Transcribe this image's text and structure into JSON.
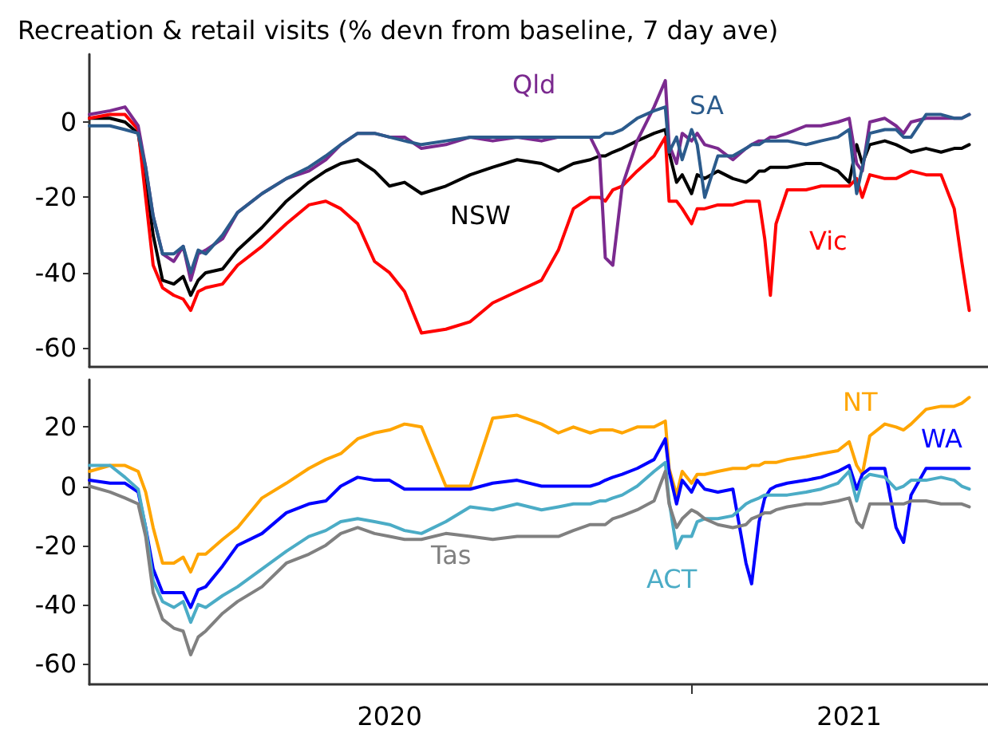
{
  "chart_data": [
    {
      "type": "line",
      "title": "Recreation & retail visits (% devn from baseline, 7 day ave)",
      "marker": "none",
      "tick_labels": "y",
      "xlim": [
        "2020-02-15",
        "2021-06-08"
      ],
      "ylim": [
        -65,
        18
      ],
      "yticks": [
        0,
        -20,
        -40,
        -60
      ],
      "x": [
        "2020-02-15",
        "2020-02-26",
        "2020-03-05",
        "2020-03-12",
        "2020-03-16",
        "2020-03-20",
        "2020-03-25",
        "2020-03-31",
        "2020-04-05",
        "2020-04-09",
        "2020-04-13",
        "2020-04-17",
        "2020-04-26",
        "2020-05-04",
        "2020-05-17",
        "2020-05-30",
        "2020-06-11",
        "2020-06-20",
        "2020-06-28",
        "2020-07-07",
        "2020-07-16",
        "2020-07-24",
        "2020-08-01",
        "2020-08-10",
        "2020-08-23",
        "2020-09-05",
        "2020-09-17",
        "2020-09-30",
        "2020-10-13",
        "2020-10-22",
        "2020-10-30",
        "2020-11-08",
        "2020-11-13",
        "2020-11-16",
        "2020-11-20",
        "2020-11-25",
        "2020-12-03",
        "2020-12-12",
        "2020-12-18",
        "2020-12-20",
        "2020-12-24",
        "2020-12-27",
        "2021-01-01",
        "2021-01-04",
        "2021-01-08",
        "2021-01-15",
        "2021-01-23",
        "2021-01-30",
        "2021-02-02",
        "2021-02-06",
        "2021-02-09",
        "2021-02-12",
        "2021-02-15",
        "2021-02-21",
        "2021-03-03",
        "2021-03-11",
        "2021-03-20",
        "2021-03-26",
        "2021-03-30",
        "2021-04-02",
        "2021-04-06",
        "2021-04-14",
        "2021-04-20",
        "2021-04-24",
        "2021-04-28",
        "2021-05-06",
        "2021-05-14",
        "2021-05-21",
        "2021-05-25",
        "2021-05-29"
      ],
      "series": [
        {
          "name": "NSW",
          "color": "#000000",
          "values": [
            1,
            1,
            0,
            -3,
            -15,
            -30,
            -42,
            -43,
            -41,
            -46,
            -42,
            -40,
            -39,
            -34,
            -28,
            -21,
            -16,
            -13,
            -11,
            -10,
            -13,
            -17,
            -16,
            -19,
            -17,
            -14,
            -12,
            -10,
            -11,
            -13,
            -11,
            -10,
            -9,
            -9,
            -8,
            -7,
            -5,
            -3,
            -2,
            -8,
            -16,
            -14,
            -19,
            -14,
            -15,
            -13,
            -15,
            -16,
            -15,
            -13,
            -13,
            -12,
            -12,
            -12,
            -11,
            -11,
            -13,
            -16,
            -6,
            -11,
            -6,
            -5,
            -6,
            -7,
            -8,
            -7,
            -8,
            -7,
            -7,
            -6
          ]
        },
        {
          "name": "Vic",
          "color": "#ff0000",
          "values": [
            1,
            2,
            2,
            -2,
            -20,
            -38,
            -44,
            -46,
            -47,
            -50,
            -45,
            -44,
            -43,
            -38,
            -33,
            -27,
            -22,
            -21,
            -23,
            -27,
            -37,
            -40,
            -45,
            -56,
            -55,
            -53,
            -48,
            -45,
            -42,
            -34,
            -23,
            -20,
            -20,
            -21,
            -18,
            -17,
            -13,
            -9,
            -4,
            -21,
            -21,
            -23,
            -27,
            -23,
            -23,
            -22,
            -22,
            -21,
            -21,
            -21,
            -31,
            -46,
            -27,
            -18,
            -18,
            -17,
            -17,
            -17,
            -15,
            -20,
            -14,
            -15,
            -15,
            -14,
            -13,
            -14,
            -14,
            -23,
            -37,
            -50
          ]
        },
        {
          "name": "Qld",
          "color": "#7b2a8f",
          "values": [
            2,
            3,
            4,
            -1,
            -12,
            -25,
            -35,
            -37,
            -33,
            -42,
            -35,
            -34,
            -31,
            -24,
            -19,
            -15,
            -13,
            -10,
            -6,
            -3,
            -3,
            -4,
            -4,
            -7,
            -6,
            -4,
            -5,
            -4,
            -5,
            -4,
            -4,
            -4,
            -9,
            -36,
            -38,
            -17,
            -5,
            4,
            11,
            -6,
            -11,
            -3,
            -5,
            -3,
            -6,
            -7,
            -10,
            -7,
            -6,
            -5,
            -5,
            -4,
            -4,
            -3,
            -1,
            -1,
            0,
            1,
            -11,
            -13,
            0,
            1,
            -1,
            -3,
            0,
            1,
            1,
            1,
            1,
            2
          ]
        },
        {
          "name": "SA",
          "color": "#2b5b8c",
          "values": [
            -1,
            -1,
            -2,
            -3,
            -12,
            -25,
            -35,
            -35,
            -33,
            -40,
            -34,
            -35,
            -30,
            -24,
            -19,
            -15,
            -12,
            -9,
            -6,
            -3,
            -3,
            -4,
            -5,
            -6,
            -5,
            -4,
            -4,
            -4,
            -4,
            -4,
            -4,
            -4,
            -4,
            -3,
            -3,
            -2,
            1,
            3,
            4,
            -8,
            -4,
            -10,
            -2,
            -6,
            -20,
            -9,
            -9,
            -7,
            -6,
            -6,
            -5,
            -5,
            -5,
            -5,
            -6,
            -5,
            -4,
            -2,
            -19,
            -12,
            -3,
            -2,
            -2,
            -4,
            -4,
            2,
            2,
            1,
            1,
            2
          ]
        }
      ]
    },
    {
      "type": "line",
      "marker": "none",
      "xlim": [
        "2020-02-15",
        "2021-06-08"
      ],
      "ylim": [
        -67,
        36
      ],
      "yticks": [
        20,
        0,
        -20,
        -40,
        -60
      ],
      "xticks": [
        {
          "value": "2020-07-24",
          "label": "2020"
        },
        {
          "value": "2021-01-01",
          "label": null
        },
        {
          "value": "2021-03-26",
          "label": "2021"
        }
      ],
      "x": [
        "2020-02-15",
        "2020-02-26",
        "2020-03-05",
        "2020-03-12",
        "2020-03-16",
        "2020-03-20",
        "2020-03-25",
        "2020-03-31",
        "2020-04-05",
        "2020-04-09",
        "2020-04-13",
        "2020-04-17",
        "2020-04-26",
        "2020-05-04",
        "2020-05-17",
        "2020-05-30",
        "2020-06-11",
        "2020-06-20",
        "2020-06-28",
        "2020-07-07",
        "2020-07-16",
        "2020-07-24",
        "2020-08-01",
        "2020-08-10",
        "2020-08-23",
        "2020-09-05",
        "2020-09-17",
        "2020-09-30",
        "2020-10-13",
        "2020-10-22",
        "2020-10-30",
        "2020-11-08",
        "2020-11-13",
        "2020-11-16",
        "2020-11-20",
        "2020-11-25",
        "2020-12-03",
        "2020-12-12",
        "2020-12-18",
        "2020-12-20",
        "2020-12-24",
        "2020-12-27",
        "2021-01-01",
        "2021-01-04",
        "2021-01-08",
        "2021-01-15",
        "2021-01-23",
        "2021-01-30",
        "2021-02-02",
        "2021-02-06",
        "2021-02-09",
        "2021-02-12",
        "2021-02-15",
        "2021-02-21",
        "2021-03-03",
        "2021-03-11",
        "2021-03-20",
        "2021-03-26",
        "2021-03-30",
        "2021-04-02",
        "2021-04-06",
        "2021-04-14",
        "2021-04-20",
        "2021-04-24",
        "2021-04-28",
        "2021-05-06",
        "2021-05-14",
        "2021-05-21",
        "2021-05-25",
        "2021-05-29"
      ],
      "series": [
        {
          "name": "NT",
          "color": "#ffa500",
          "values": [
            5,
            7,
            7,
            5,
            -2,
            -14,
            -26,
            -26,
            -24,
            -29,
            -23,
            -23,
            -18,
            -14,
            -4,
            1,
            6,
            9,
            11,
            16,
            18,
            19,
            21,
            20,
            0,
            0,
            23,
            24,
            21,
            18,
            20,
            18,
            19,
            19,
            19,
            18,
            20,
            20,
            22,
            6,
            -3,
            5,
            1,
            4,
            4,
            5,
            6,
            6,
            7,
            7,
            8,
            8,
            8,
            9,
            10,
            11,
            12,
            15,
            7,
            4,
            17,
            21,
            20,
            19,
            21,
            26,
            27,
            27,
            28,
            30
          ]
        },
        {
          "name": "WA",
          "color": "#0000ff",
          "values": [
            2,
            1,
            1,
            -2,
            -14,
            -28,
            -36,
            -36,
            -36,
            -41,
            -35,
            -34,
            -27,
            -20,
            -16,
            -9,
            -6,
            -5,
            0,
            3,
            2,
            2,
            -1,
            -1,
            -1,
            -1,
            1,
            2,
            0,
            0,
            0,
            0,
            1,
            2,
            3,
            4,
            6,
            9,
            16,
            5,
            -6,
            2,
            -2,
            2,
            -1,
            -2,
            -1,
            -26,
            -33,
            -12,
            -4,
            -1,
            0,
            1,
            2,
            3,
            5,
            7,
            -1,
            4,
            6,
            6,
            -14,
            -19,
            -3,
            6,
            6,
            6,
            6,
            6
          ]
        },
        {
          "name": "ACT",
          "color": "#4bacc6",
          "values": [
            7,
            7,
            3,
            -1,
            -14,
            -32,
            -39,
            -41,
            -39,
            -46,
            -40,
            -41,
            -37,
            -34,
            -28,
            -22,
            -17,
            -15,
            -12,
            -11,
            -12,
            -13,
            -15,
            -16,
            -12,
            -7,
            -8,
            -6,
            -8,
            -7,
            -6,
            -6,
            -5,
            -5,
            -4,
            -3,
            0,
            5,
            8,
            -5,
            -21,
            -17,
            -17,
            -12,
            -11,
            -11,
            -10,
            -6,
            -5,
            -4,
            -3,
            -3,
            -3,
            -3,
            -2,
            -1,
            1,
            5,
            -5,
            2,
            4,
            3,
            -1,
            0,
            2,
            2,
            3,
            2,
            0,
            -1
          ]
        },
        {
          "name": "Tas",
          "color": "#808080",
          "values": [
            0,
            -2,
            -4,
            -6,
            -17,
            -36,
            -45,
            -48,
            -49,
            -57,
            -51,
            -49,
            -43,
            -39,
            -34,
            -26,
            -23,
            -20,
            -16,
            -14,
            -16,
            -17,
            -18,
            -18,
            -16,
            -17,
            -18,
            -17,
            -17,
            -17,
            -15,
            -13,
            -13,
            -13,
            -11,
            -10,
            -8,
            -5,
            5,
            -6,
            -14,
            -11,
            -8,
            -9,
            -11,
            -13,
            -14,
            -13,
            -11,
            -10,
            -9,
            -9,
            -8,
            -7,
            -6,
            -6,
            -5,
            -4,
            -12,
            -14,
            -6,
            -6,
            -6,
            -6,
            -5,
            -5,
            -6,
            -6,
            -6,
            -7
          ]
        }
      ]
    }
  ]
}
